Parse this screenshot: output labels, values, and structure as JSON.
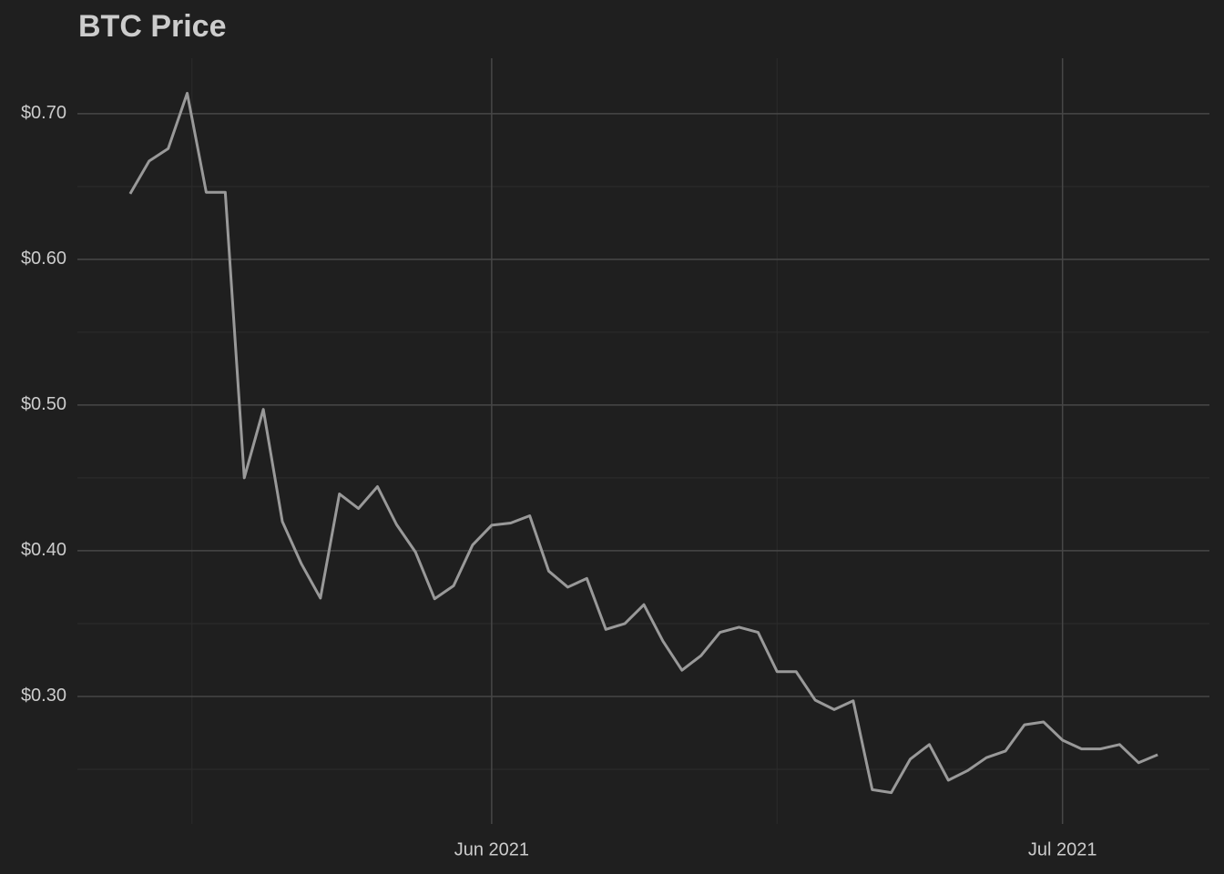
{
  "chart_data": {
    "type": "line",
    "title": "BTC Price",
    "values": [
      0.645,
      0.6675,
      0.676,
      0.714,
      0.646,
      0.646,
      0.45,
      0.497,
      0.42,
      0.391,
      0.3675,
      0.439,
      0.429,
      0.444,
      0.418,
      0.399,
      0.367,
      0.376,
      0.404,
      0.4175,
      0.419,
      0.424,
      0.386,
      0.375,
      0.381,
      0.346,
      0.35,
      0.363,
      0.338,
      0.318,
      0.328,
      0.344,
      0.3475,
      0.344,
      0.317,
      0.317,
      0.2975,
      0.291,
      0.297,
      0.236,
      0.234,
      0.257,
      0.267,
      0.2425,
      0.249,
      0.258,
      0.2625,
      0.2805,
      0.2825,
      0.27,
      0.264,
      0.264,
      0.267,
      0.2545,
      0.26
    ],
    "color": "#999999",
    "xlim": [
      -2.77,
      56.72
    ],
    "xticks": [
      {
        "value": 19,
        "label": "Jun 2021"
      },
      {
        "value": 49,
        "label": "Jul 2021"
      }
    ],
    "x_minor_ticks": [
      3.25,
      34
    ],
    "ylim": [
      0.2125,
      0.738
    ],
    "yticks": [
      {
        "value": 0.3,
        "label": "$0.30"
      },
      {
        "value": 0.4,
        "label": "$0.40"
      },
      {
        "value": 0.5,
        "label": "$0.50"
      },
      {
        "value": 0.6,
        "label": "$0.60"
      },
      {
        "value": 0.7,
        "label": "$0.70"
      }
    ],
    "y_minor_ticks": [
      0.25,
      0.35,
      0.45,
      0.55,
      0.65
    ],
    "grid": true
  }
}
